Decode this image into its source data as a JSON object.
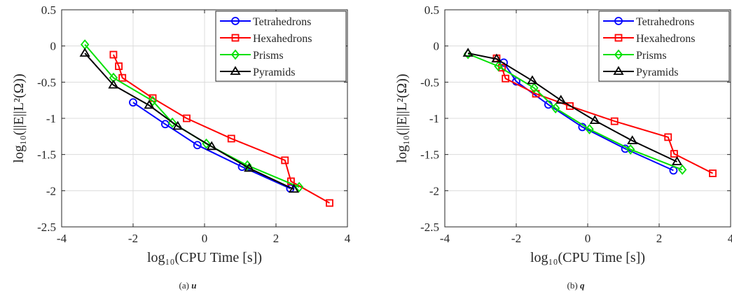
{
  "chart_data": [
    {
      "type": "line",
      "caption_label": "(a)",
      "caption_symbol": "u",
      "xlabel": "log₁₀(CPU Time [s])",
      "ylabel": "log₁₀(||E||L²(Ω))",
      "xlim": [
        -4,
        4
      ],
      "ylim": [
        -2.5,
        0.5
      ],
      "xticks": [
        "-4",
        "-2",
        "0",
        "2",
        "4"
      ],
      "yticks": [
        "0.5",
        "0",
        "-0.5",
        "-1",
        "-1.5",
        "-2",
        "-2.5"
      ],
      "grid": true,
      "legend_position": "top-right",
      "series": [
        {
          "name": "Tetrahedrons",
          "color": "#0000ff",
          "marker": "circle",
          "x": [
            -2.0,
            -1.1,
            -0.2,
            1.05,
            2.4
          ],
          "y": [
            -0.78,
            -1.08,
            -1.37,
            -1.67,
            -1.97
          ]
        },
        {
          "name": "Hexahedrons",
          "color": "#ff0000",
          "marker": "square",
          "x": [
            -2.55,
            -2.4,
            -2.3,
            -1.45,
            -0.5,
            0.75,
            2.25,
            2.42,
            3.5
          ],
          "y": [
            -0.12,
            -0.28,
            -0.44,
            -0.72,
            -1.0,
            -1.28,
            -1.58,
            -1.87,
            -2.17
          ]
        },
        {
          "name": "Prisms",
          "color": "#00e000",
          "marker": "diamond",
          "x": [
            -3.35,
            -2.55,
            -1.45,
            -0.9,
            0.05,
            1.2,
            2.65
          ],
          "y": [
            0.02,
            -0.44,
            -0.76,
            -1.06,
            -1.35,
            -1.65,
            -1.95
          ]
        },
        {
          "name": "Pyramids",
          "color": "#000000",
          "marker": "triangle",
          "x": [
            -3.35,
            -2.55,
            -1.55,
            -0.75,
            0.2,
            1.25,
            2.5
          ],
          "y": [
            -0.1,
            -0.54,
            -0.82,
            -1.11,
            -1.39,
            -1.69,
            -1.98
          ]
        }
      ]
    },
    {
      "type": "line",
      "caption_label": "(b)",
      "caption_symbol": "q",
      "xlabel": "log₁₀(CPU Time [s])",
      "ylabel": "log₁₀(||E||L²(Ω))",
      "xlim": [
        -4,
        4
      ],
      "ylim": [
        -2.5,
        0.5
      ],
      "xticks": [
        "-4",
        "-2",
        "0",
        "2",
        "4"
      ],
      "yticks": [
        "0.5",
        "0",
        "-0.5",
        "-1",
        "-1.5",
        "-2",
        "-2.5"
      ],
      "grid": true,
      "legend_position": "top-right",
      "series": [
        {
          "name": "Tetrahedrons",
          "color": "#0000ff",
          "marker": "circle",
          "x": [
            -2.35,
            -2.0,
            -1.1,
            -0.15,
            1.05,
            2.4
          ],
          "y": [
            -0.23,
            -0.49,
            -0.81,
            -1.12,
            -1.42,
            -1.72
          ]
        },
        {
          "name": "Hexahedrons",
          "color": "#ff0000",
          "marker": "square",
          "x": [
            -2.55,
            -2.4,
            -2.3,
            -1.45,
            -0.5,
            0.75,
            2.25,
            2.42,
            3.5
          ],
          "y": [
            -0.17,
            -0.3,
            -0.45,
            -0.66,
            -0.83,
            -1.04,
            -1.26,
            -1.49,
            -1.76
          ]
        },
        {
          "name": "Prisms",
          "color": "#00e000",
          "marker": "diamond",
          "x": [
            -3.35,
            -2.5,
            -1.5,
            -0.9,
            0.05,
            1.2,
            2.65
          ],
          "y": [
            -0.11,
            -0.28,
            -0.58,
            -0.86,
            -1.15,
            -1.43,
            -1.71
          ]
        },
        {
          "name": "Pyramids",
          "color": "#000000",
          "marker": "triangle",
          "x": [
            -3.35,
            -2.55,
            -1.55,
            -0.75,
            0.2,
            1.25,
            2.5
          ],
          "y": [
            -0.1,
            -0.18,
            -0.48,
            -0.75,
            -1.03,
            -1.31,
            -1.6
          ]
        }
      ]
    }
  ]
}
